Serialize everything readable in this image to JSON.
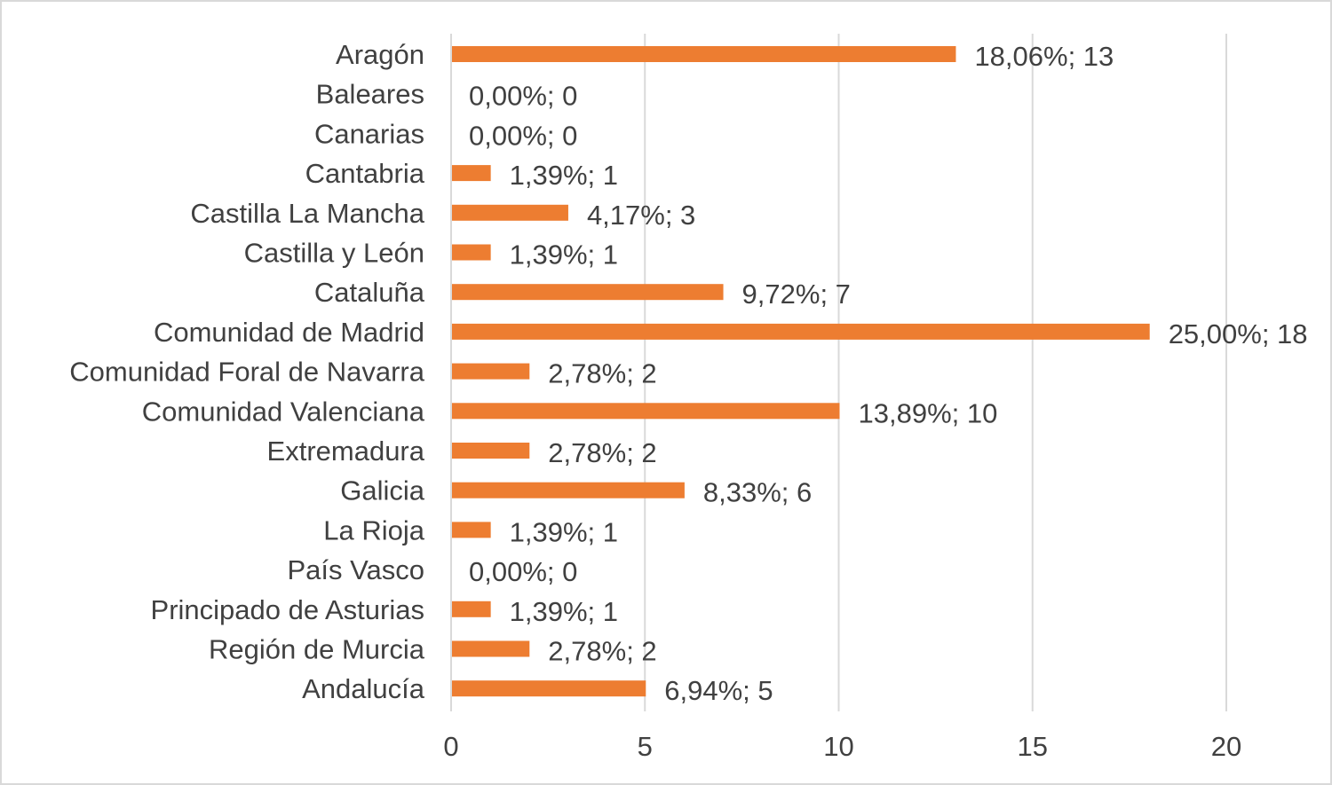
{
  "chart_data": {
    "type": "bar",
    "orientation": "horizontal",
    "categories": [
      "Aragón",
      "Baleares",
      "Canarias",
      "Cantabria",
      "Castilla La Mancha",
      "Castilla y León",
      "Cataluña",
      "Comunidad de Madrid",
      "Comunidad Foral de Navarra",
      "Comunidad Valenciana",
      "Extremadura",
      "Galicia",
      "La Rioja",
      "País Vasco",
      "Principado de Asturias",
      "Región de Murcia",
      "Andalucía"
    ],
    "values": [
      13,
      0,
      0,
      1,
      3,
      1,
      7,
      18,
      2,
      10,
      2,
      6,
      1,
      0,
      1,
      2,
      5
    ],
    "data_labels": [
      "18,06%; 13",
      "0,00%; 0",
      "0,00%; 0",
      "1,39%; 1",
      "4,17%; 3",
      "1,39%; 1",
      "9,72%; 7",
      "25,00%; 18",
      "2,78%; 2",
      "13,89%; 10",
      "2,78%; 2",
      "8,33%; 6",
      "1,39%; 1",
      "0,00%; 0",
      "1,39%; 1",
      "2,78%; 2",
      "6,94%; 5"
    ],
    "xlim": [
      0,
      20
    ],
    "xticks": [
      "0",
      "5",
      "10",
      "15",
      "20"
    ],
    "title": "",
    "xlabel": "",
    "ylabel": "",
    "grid": "vertical",
    "legend": "none",
    "bar_color": "#ed7d31",
    "grid_color": "#d9d9d9",
    "text_color": "#404040"
  }
}
